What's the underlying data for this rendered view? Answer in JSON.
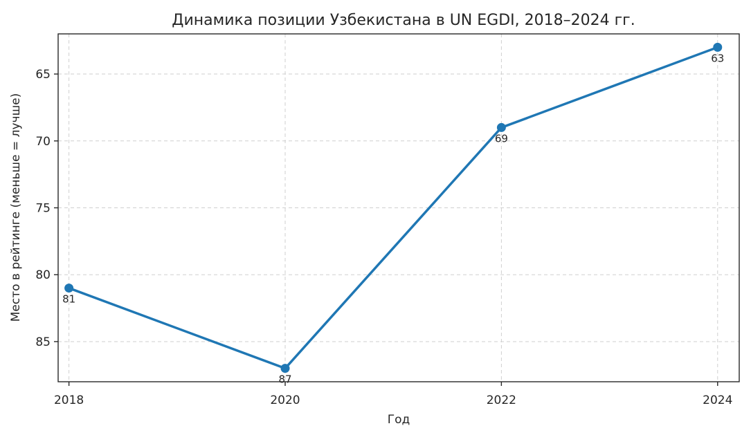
{
  "chart_data": {
    "type": "line",
    "title": "Динамика позиции Узбекистана в UN EGDI, 2018–2024 гг.",
    "xlabel": "Год",
    "ylabel": "Место в рейтинге (меньше = лучше)",
    "x": [
      2018,
      2020,
      2022,
      2024
    ],
    "x_ticks": [
      "2018",
      "2020",
      "2022",
      "2024"
    ],
    "series": [
      {
        "values": [
          81,
          87,
          69,
          63
        ],
        "color": "#1f77b4",
        "marker": "circle"
      }
    ],
    "data_labels": [
      "81",
      "87",
      "69",
      "63"
    ],
    "y_ticks": [
      65,
      70,
      75,
      80,
      85
    ],
    "y_tick_labels": [
      "65",
      "70",
      "75",
      "80",
      "85"
    ],
    "xlim": [
      2017.9,
      2024.2
    ],
    "ylim": [
      88.0,
      62.0
    ],
    "y_inverted": true,
    "grid": true,
    "legend": "none"
  }
}
